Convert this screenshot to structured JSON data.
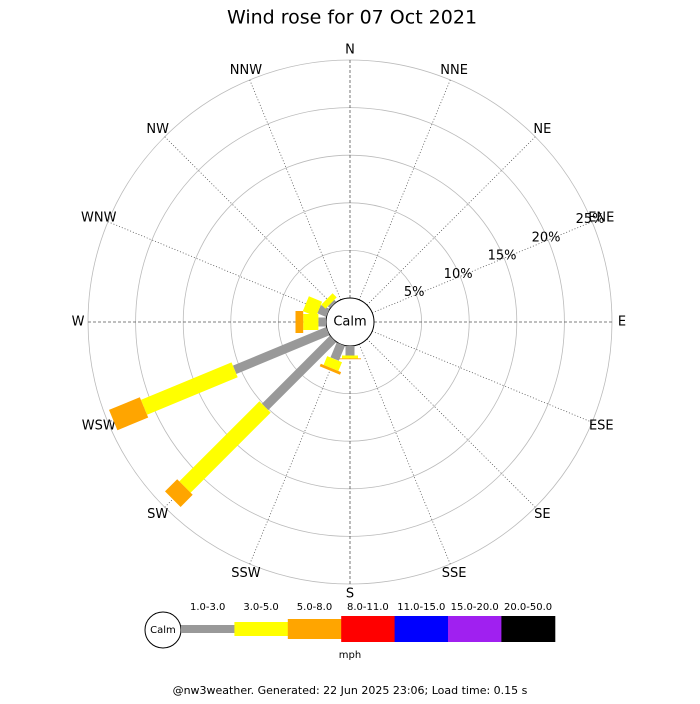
{
  "chart_data": {
    "type": "windrose",
    "title": "Wind rose for 07 Oct 2021",
    "directions": [
      "N",
      "NNE",
      "NE",
      "ENE",
      "E",
      "ESE",
      "SE",
      "SSE",
      "S",
      "SSW",
      "SW",
      "WSW",
      "W",
      "WNW",
      "NW",
      "NNW"
    ],
    "calm_label": "Calm",
    "rlim": [
      0,
      25
    ],
    "rticks": [
      {
        "value": 5,
        "label": "5%"
      },
      {
        "value": 10,
        "label": "10%"
      },
      {
        "value": 15,
        "label": "15%"
      },
      {
        "value": 20,
        "label": "20%"
      },
      {
        "value": 25,
        "label": "25%"
      }
    ],
    "unit": "mph",
    "series": [
      {
        "name": "1.0-3.0",
        "color": "#999999",
        "values": [
          0,
          0,
          0,
          0,
          0,
          0,
          0,
          0,
          1.0,
          1.7,
          10.1,
          10.6,
          0.8,
          1.0,
          0.3,
          0
        ]
      },
      {
        "name": "3.0-5.0",
        "color": "#ffff00",
        "values": [
          0,
          0,
          0,
          0,
          0,
          0,
          0,
          0,
          0.3,
          1.0,
          11.9,
          10.3,
          1.6,
          1.5,
          0.6,
          0
        ]
      },
      {
        "name": "5.0-8.0",
        "color": "#ffa500",
        "values": [
          0,
          0,
          0,
          0,
          0,
          0,
          0,
          0,
          0.1,
          0.3,
          1.8,
          3.5,
          0.8,
          0,
          0,
          0
        ]
      },
      {
        "name": "8.0-11.0",
        "color": "#ff0000",
        "values": [
          0,
          0,
          0,
          0,
          0,
          0,
          0,
          0,
          0,
          0,
          0,
          0,
          0,
          0,
          0,
          0
        ]
      },
      {
        "name": "11.0-15.0",
        "color": "#0000ff",
        "values": [
          0,
          0,
          0,
          0,
          0,
          0,
          0,
          0,
          0,
          0,
          0,
          0,
          0,
          0,
          0,
          0
        ]
      },
      {
        "name": "15.0-20.0",
        "color": "#a020f0",
        "values": [
          0,
          0,
          0,
          0,
          0,
          0,
          0,
          0,
          0,
          0,
          0,
          0,
          0,
          0,
          0,
          0
        ]
      },
      {
        "name": "20.0-50.0",
        "color": "#000000",
        "values": [
          0,
          0,
          0,
          0,
          0,
          0,
          0,
          0,
          0,
          0,
          0,
          0,
          0,
          0,
          0,
          0
        ]
      }
    ]
  },
  "footer": "@nw3weather. Generated: 22 Jun 2025 23:06; Load time: 0.15 s"
}
